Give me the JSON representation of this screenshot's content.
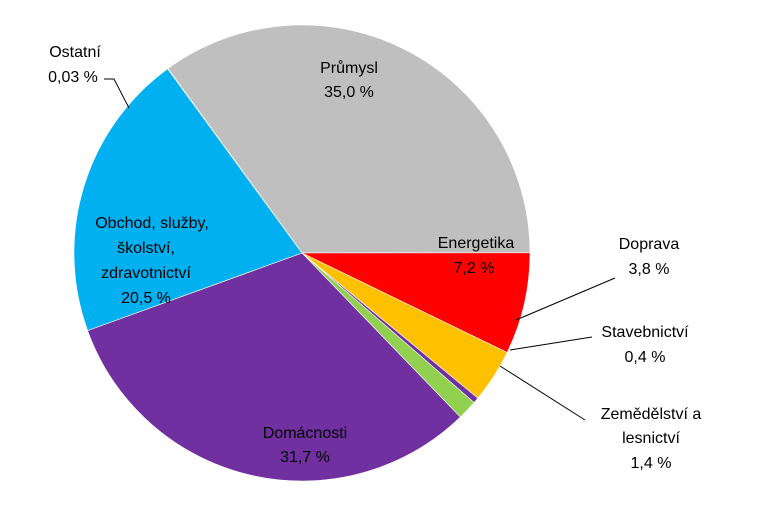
{
  "chart_data": {
    "type": "pie",
    "title": "",
    "start_angle_deg": -36,
    "direction": "clockwise",
    "slices": [
      {
        "name": "Průmysl",
        "value": 35.0,
        "value_label": "35,0 %",
        "color": "#BFBFBF"
      },
      {
        "name": "Energetika",
        "value": 7.2,
        "value_label": "7,2 %",
        "color": "#FF0000"
      },
      {
        "name": "Doprava",
        "value": 3.8,
        "value_label": "3,8 %",
        "color": "#FFC000"
      },
      {
        "name": "Stavebnictví",
        "value": 0.4,
        "value_label": "0,4 %",
        "color": "#7030A0"
      },
      {
        "name": "Zemědělství a lesnictví",
        "value": 1.4,
        "value_label": "1,4 %",
        "color": "#92D050"
      },
      {
        "name": "Domácnosti",
        "value": 31.7,
        "value_label": "31,7 %",
        "color": "#7030A0"
      },
      {
        "name": "Obchod, služby, školství, zdravotnictví",
        "value": 20.5,
        "value_label": "20,5 %",
        "color": "#00B0F0"
      },
      {
        "name": "Ostatní",
        "value": 0.03,
        "value_label": "0,03 %",
        "color": "#FFFF00"
      }
    ],
    "legend": "none"
  }
}
